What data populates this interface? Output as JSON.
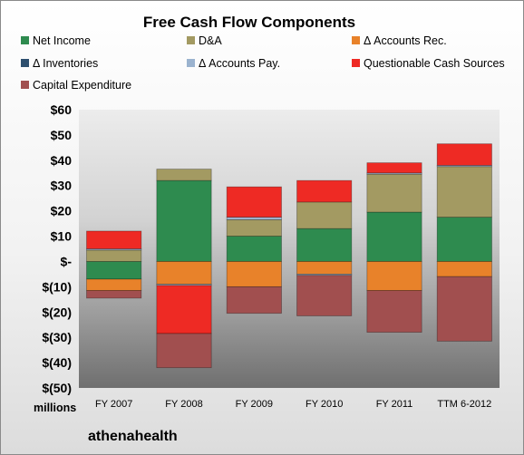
{
  "brand": "athenahealth",
  "chart_data": {
    "type": "bar",
    "stacked": true,
    "title": "Free Cash Flow Components",
    "units_label": "millions",
    "categories": [
      "FY 2007",
      "FY 2008",
      "FY 2009",
      "FY 2010",
      "FY 2011",
      "TTM 6-2012"
    ],
    "ylim": [
      -50,
      60
    ],
    "yticks": [
      60,
      50,
      40,
      30,
      20,
      10,
      0,
      -10,
      -20,
      -30,
      -40,
      -50
    ],
    "ytick_labels": [
      "$60",
      "$50",
      "$40",
      "$30",
      "$20",
      "$10",
      "$-",
      "$(10)",
      "$(20)",
      "$(30)",
      "$(40)",
      "$(50)"
    ],
    "grid": false,
    "legend_position": "top",
    "series": [
      {
        "name": "Net Income",
        "color": "#2e8b4f",
        "values": [
          -7,
          32,
          10,
          13,
          19.5,
          17.5
        ]
      },
      {
        "name": "D&A",
        "color": "#a39a62",
        "values": [
          4.5,
          4.5,
          6.5,
          10.5,
          15,
          20
        ]
      },
      {
        "name": "Δ Accounts Rec.",
        "color": "#e8822a",
        "values": [
          -4.5,
          -9,
          -10,
          -5,
          -11.5,
          -6
        ]
      },
      {
        "name": "Δ Inventories",
        "color": "#2e4f6e",
        "values": [
          0,
          0,
          0,
          0,
          0,
          0
        ]
      },
      {
        "name": "Δ Accounts Pay.",
        "color": "#9bb3cf",
        "values": [
          0.5,
          -0.5,
          1,
          -0.5,
          0.5,
          0.5
        ]
      },
      {
        "name": "Questionable Cash Sources",
        "color": "#ee2a24",
        "values": [
          7,
          -19,
          12,
          8.5,
          4,
          8.5
        ]
      },
      {
        "name": "Capital Expenditure",
        "color": "#a14f4f",
        "values": [
          -3,
          -13.5,
          -10.5,
          -16,
          -16.5,
          -25.5
        ]
      }
    ]
  }
}
